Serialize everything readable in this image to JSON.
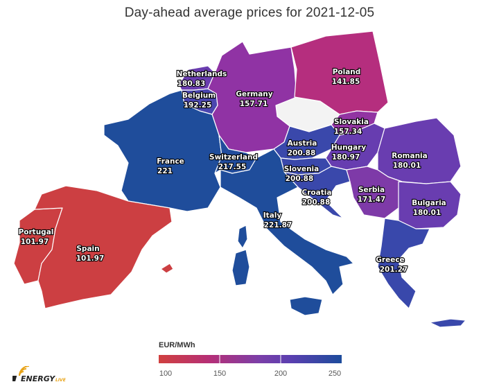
{
  "title": "Day-ahead average prices for 2021-12-05",
  "legend": {
    "title": "EUR/MWh",
    "ticks": [
      "100",
      "150",
      "200",
      "250"
    ],
    "min": 100,
    "max": 250,
    "colors": [
      "#d0403f",
      "#b52f77",
      "#7b3fa8",
      "#5b3fb0",
      "#1d4c9c"
    ]
  },
  "logo": {
    "text": "ENERGY",
    "suffix": "LIVE"
  },
  "regions": [
    {
      "name": "Netherlands",
      "value": "180.83",
      "color": "#6a3db0"
    },
    {
      "name": "Belgium",
      "value": "192.25",
      "color": "#4b46b0"
    },
    {
      "name": "Germany",
      "value": "157.71",
      "color": "#9033a4"
    },
    {
      "name": "Poland",
      "value": "141.85",
      "color": "#b52e7e"
    },
    {
      "name": "Slovakia",
      "value": "157.34",
      "color": "#9234a2"
    },
    {
      "name": "France",
      "value": "221",
      "color": "#1f4d9b"
    },
    {
      "name": "Austria",
      "value": "200.88",
      "color": "#3a48ab"
    },
    {
      "name": "Switzerland",
      "value": "217.55",
      "color": "#214c9d"
    },
    {
      "name": "Hungary",
      "value": "180.97",
      "color": "#673db0"
    },
    {
      "name": "Romania",
      "value": "180.01",
      "color": "#693db0"
    },
    {
      "name": "Slovenia",
      "value": "200.88",
      "color": "#3a48ab"
    },
    {
      "name": "Croatia",
      "value": "200.88",
      "color": "#3a48ab"
    },
    {
      "name": "Serbia",
      "value": "171.47",
      "color": "#7e3aa8"
    },
    {
      "name": "Bulgaria",
      "value": "180.01",
      "color": "#693db0"
    },
    {
      "name": "Italy",
      "value": "221.87",
      "color": "#1f4d9b"
    },
    {
      "name": "Portugal",
      "value": "101.97",
      "color": "#cc3f42"
    },
    {
      "name": "Spain",
      "value": "101.97",
      "color": "#cc3f42"
    },
    {
      "name": "Greece",
      "value": "201.27",
      "color": "#3948ab"
    }
  ],
  "no_data_color": "#f3f3f3"
}
